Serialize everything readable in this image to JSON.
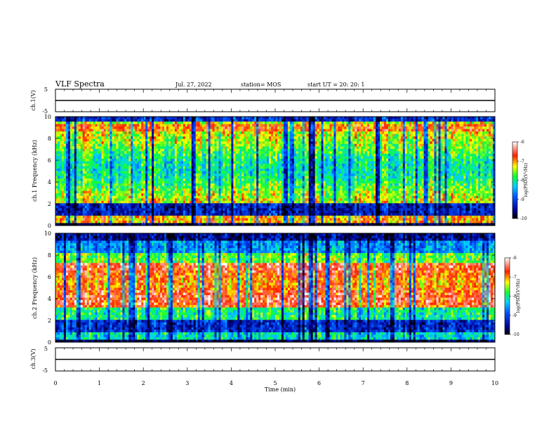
{
  "header": {
    "title": "VLF Spectra",
    "date": "Jul. 27, 2022",
    "station": "station= MOS",
    "start_ut": "start UT =  20: 20: 1"
  },
  "chart_data": [
    {
      "type": "line",
      "name": "ch1-voltage",
      "ylabel": "ch.1(V)",
      "ytick_labels": [
        "5",
        "-5"
      ],
      "ylim": [
        -5,
        5
      ],
      "xlim": [
        0,
        10
      ],
      "trace_level": 0
    },
    {
      "type": "heatmap",
      "name": "ch1-spectrogram",
      "ylabel": "ch.1  Frequency (kHz)",
      "yticks": [
        0,
        2,
        4,
        6,
        8,
        10
      ],
      "ytick_labels": [
        "0",
        "2",
        "4",
        "6",
        "8",
        "10"
      ],
      "ylim": [
        0,
        10
      ],
      "xlim": [
        0,
        10
      ],
      "colorbar": {
        "label": "log(PSD)(V²/Hz)",
        "range": [
          -10,
          -6
        ],
        "tick_labels": [
          "-6",
          "-7",
          "-8",
          "-9",
          "-10"
        ]
      }
    },
    {
      "type": "heatmap",
      "name": "ch2-spectrogram",
      "ylabel": "ch.2  Frequency (kHz)",
      "yticks": [
        0,
        2,
        4,
        6,
        8,
        10
      ],
      "ytick_labels": [
        "0",
        "2",
        "4",
        "6",
        "8",
        "10"
      ],
      "ylim": [
        0,
        10
      ],
      "xlim": [
        0,
        10
      ],
      "colorbar": {
        "label": "log(PSD)(V²/Hz)",
        "range": [
          -10,
          -6
        ],
        "tick_labels": [
          "-6",
          "-7",
          "-8",
          "-9",
          "-10"
        ]
      }
    },
    {
      "type": "line",
      "name": "ch3-voltage",
      "ylabel": "ch.3(V)",
      "ytick_labels": [
        "5",
        "-5"
      ],
      "ylim": [
        -5,
        5
      ],
      "xlim": [
        0,
        10
      ],
      "trace_level": 0,
      "xlabel": "Time (min)",
      "xticks": [
        0,
        1,
        2,
        3,
        4,
        5,
        6,
        7,
        8,
        9,
        10
      ],
      "xtick_labels": [
        "0",
        "1",
        "2",
        "3",
        "4",
        "5",
        "6",
        "7",
        "8",
        "9",
        "10"
      ]
    }
  ]
}
